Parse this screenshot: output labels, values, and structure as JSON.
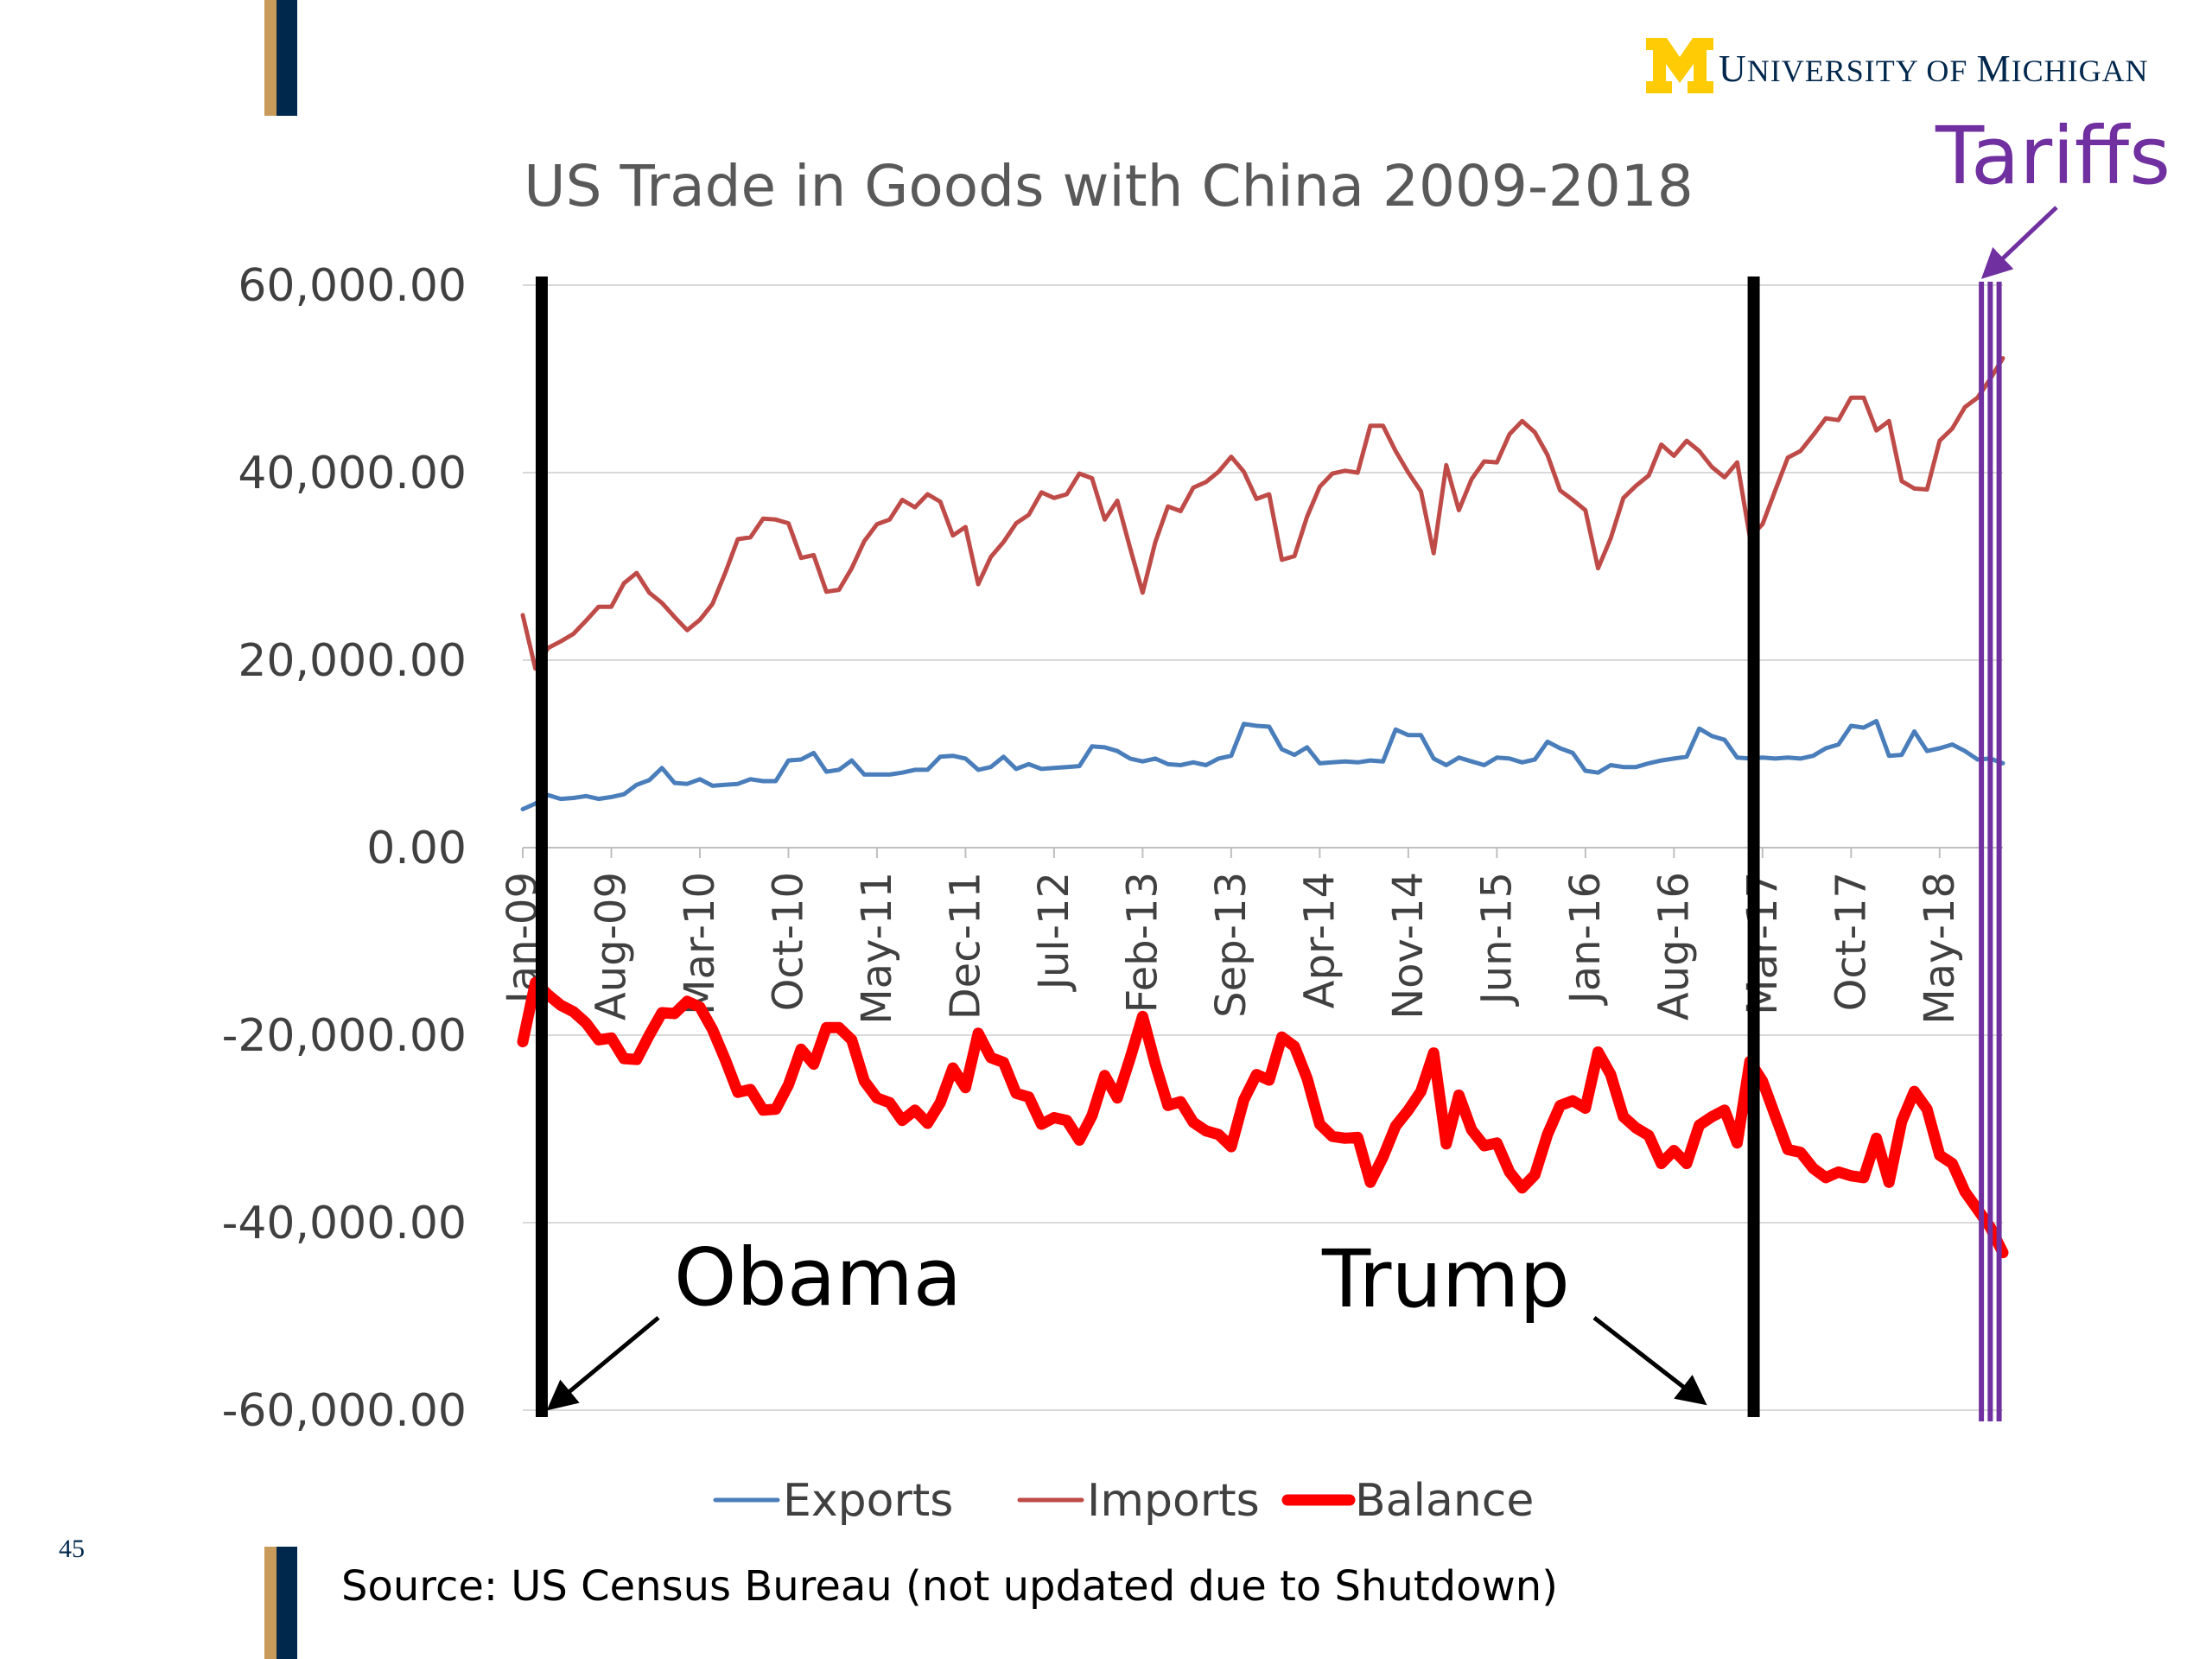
{
  "brand": {
    "logo_letter": "M",
    "logo_text_first": "U",
    "logo_text_rest1": "NIVERSITY OF ",
    "logo_text_second": "M",
    "logo_text_rest2": "ICHIGAN",
    "maize": "#ffcb05",
    "blue": "#00274c"
  },
  "slide_number": "45",
  "source": "Source:  US Census Bureau (not updated due to Shutdown)",
  "annotations": {
    "obama": "Obama",
    "trump": "Trump",
    "tariffs": "Tariffs"
  },
  "chart_data": {
    "type": "line",
    "title": "US Trade in Goods with China 2009-2018",
    "xlabel": "",
    "ylabel": "",
    "ylim": [
      -60000,
      60000
    ],
    "yticks": [
      60000,
      40000,
      20000,
      0,
      -20000,
      -40000,
      -60000
    ],
    "ytick_labels": [
      "60,000.00",
      "40,000.00",
      "20,000.00",
      "0.00",
      "-20,000.00",
      "-40,000.00",
      "-60,000.00"
    ],
    "x_start": "Jan-09",
    "x_count": 118,
    "xtick_labels": [
      "Jan-09",
      "Aug-09",
      "Mar-10",
      "Oct-10",
      "May-11",
      "Dec-11",
      "Jul-12",
      "Feb-13",
      "Sep-13",
      "Apr-14",
      "Nov-14",
      "Jun-15",
      "Jan-16",
      "Aug-16",
      "Mar-17",
      "Oct-17",
      "May-18"
    ],
    "xtick_every": 7,
    "grid": true,
    "legend_position": "bottom",
    "colors": {
      "exports": "#4a7ebb",
      "imports": "#be4b48",
      "balance": "#ff0000",
      "event": "#000000",
      "tariff": "#7030a0"
    },
    "series": [
      {
        "name": "Exports",
        "values": [
          4100,
          4700,
          5600,
          5200,
          5300,
          5500,
          5200,
          5400,
          5700,
          6700,
          7200,
          8500,
          6900,
          6800,
          7300,
          6600,
          6700,
          6800,
          7300,
          7100,
          7100,
          9300,
          9400,
          10100,
          8100,
          8300,
          9300,
          7800,
          7800,
          7800,
          8000,
          8300,
          8300,
          9700,
          9800,
          9500,
          8300,
          8600,
          9700,
          8400,
          8900,
          8400,
          8500,
          8600,
          8700,
          10800,
          10700,
          10300,
          9500,
          9200,
          9500,
          8900,
          8800,
          9100,
          8800,
          9500,
          9800,
          13200,
          13000,
          12900,
          10500,
          9900,
          10700,
          9000,
          9100,
          9200,
          9100,
          9300,
          9200,
          12600,
          12000,
          12000,
          9500,
          8800,
          9600,
          9200,
          8800,
          9600,
          9500,
          9100,
          9400,
          11300,
          10600,
          10100,
          8200,
          8000,
          8800,
          8600,
          8600,
          9000,
          9300,
          9500,
          9700,
          12700,
          11900,
          11500,
          9600,
          9500,
          9600,
          9500,
          9600,
          9500,
          9800,
          10600,
          11000,
          13000,
          12800,
          13500,
          9800,
          9900,
          12400,
          10300,
          10600,
          11000,
          10300,
          9400,
          9500,
          9000
        ]
      },
      {
        "name": "Imports",
        "values": [
          24800,
          19100,
          21300,
          22000,
          22800,
          24200,
          25700,
          25700,
          28200,
          29300,
          27200,
          26100,
          24600,
          23200,
          24300,
          26000,
          29300,
          32900,
          33100,
          35100,
          35000,
          34600,
          30900,
          31200,
          27300,
          27500,
          29800,
          32700,
          34500,
          35000,
          37100,
          36300,
          37700,
          36900,
          33300,
          34200,
          28100,
          31000,
          32600,
          34600,
          35500,
          37900,
          37300,
          37700,
          39900,
          39400,
          35000,
          37000,
          32000,
          27200,
          32600,
          36400,
          35900,
          38400,
          39000,
          40100,
          41700,
          40100,
          37200,
          37700,
          30700,
          31100,
          35300,
          38500,
          39900,
          40200,
          40000,
          45000,
          45000,
          42300,
          40000,
          38000,
          31400,
          40800,
          36000,
          39300,
          41200,
          41100,
          44100,
          45500,
          44300,
          41900,
          38100,
          37100,
          36000,
          29800,
          33000,
          37300,
          38600,
          39700,
          43000,
          41800,
          43400,
          42300,
          40600,
          39500,
          41100,
          33100,
          34500,
          38100,
          41600,
          42300,
          44000,
          45800,
          45600,
          48000,
          48000,
          44500,
          45500,
          39100,
          38300,
          38200,
          43400,
          44700,
          47000,
          48000,
          50000,
          52200
        ]
      },
      {
        "name": "Balance",
        "values": [
          -20700,
          -14400,
          -15700,
          -16800,
          -17500,
          -18700,
          -20500,
          -20300,
          -22500,
          -22600,
          -20000,
          -17600,
          -17700,
          -16400,
          -17000,
          -19400,
          -22600,
          -26100,
          -25800,
          -28000,
          -27900,
          -25300,
          -21500,
          -23100,
          -19200,
          -19200,
          -20500,
          -24900,
          -26700,
          -27200,
          -29100,
          -28000,
          -29400,
          -27200,
          -23500,
          -25600,
          -19800,
          -22400,
          -22900,
          -26200,
          -26600,
          -29500,
          -28800,
          -29100,
          -31200,
          -28600,
          -24300,
          -26700,
          -22500,
          -18000,
          -23100,
          -27500,
          -27100,
          -29300,
          -30200,
          -30600,
          -31900,
          -26900,
          -24200,
          -24800,
          -20200,
          -21200,
          -24600,
          -29500,
          -30800,
          -31000,
          -30900,
          -35700,
          -33000,
          -29700,
          -28000,
          -26000,
          -21900,
          -31600,
          -26400,
          -30100,
          -31800,
          -31500,
          -34600,
          -36300,
          -34900,
          -30600,
          -27500,
          -27000,
          -27800,
          -21800,
          -24200,
          -28700,
          -29900,
          -30700,
          -33700,
          -32300,
          -33700,
          -29600,
          -28700,
          -28000,
          -31500,
          -22800,
          -24900,
          -28600,
          -32200,
          -32500,
          -34200,
          -35200,
          -34600,
          -35000,
          -35200,
          -31000,
          -35700,
          -29200,
          -26000,
          -27900,
          -32800,
          -33700,
          -36700,
          -38600,
          -40500,
          -43200
        ]
      }
    ],
    "event_lines": [
      {
        "label": "Obama",
        "x_index": 1.5
      },
      {
        "label": "Trump",
        "x_index": 97.3
      }
    ],
    "tariff_lines": [
      115.3,
      116.0,
      116.7
    ]
  }
}
